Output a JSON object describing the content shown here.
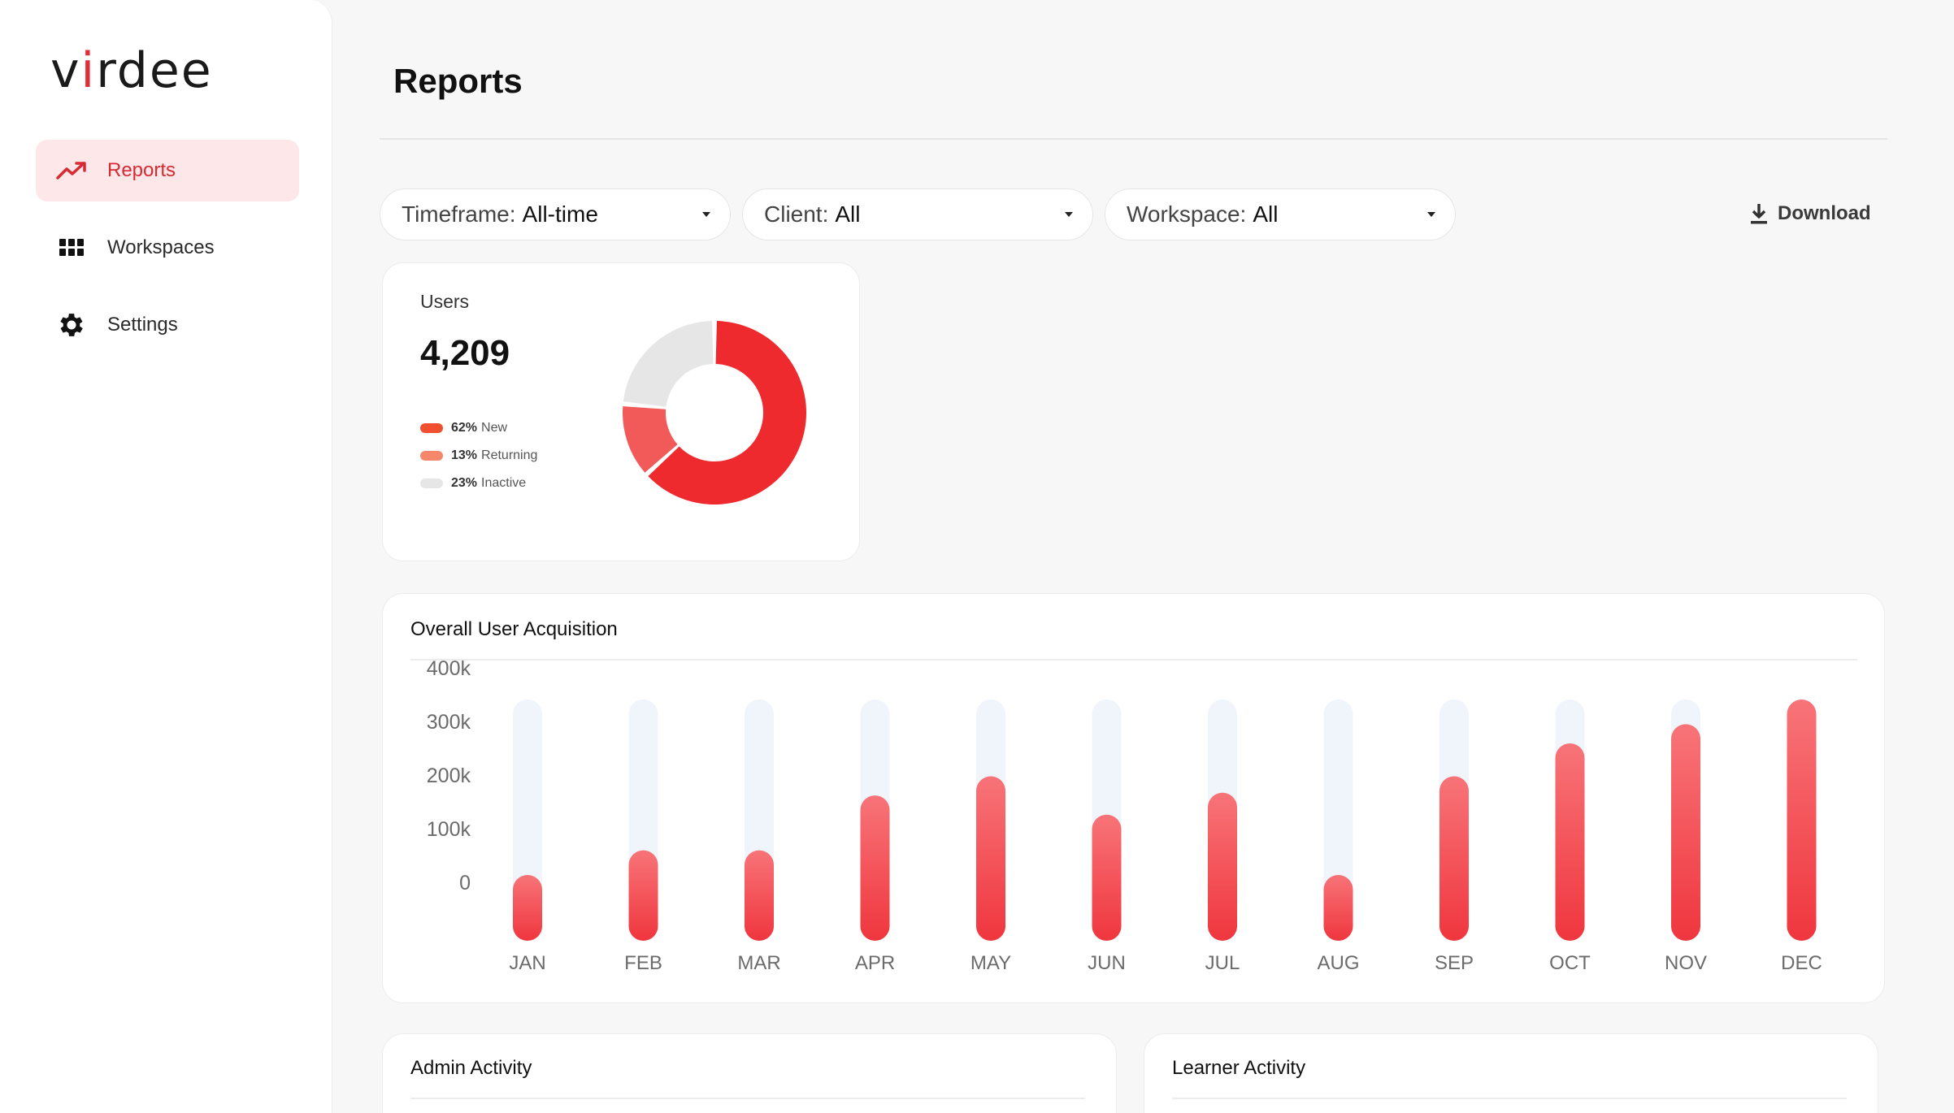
{
  "brand": {
    "name_prefix": "v",
    "name_dot": "i",
    "name_rest": "rdee",
    "accent": "#e32d36"
  },
  "sidebar": {
    "items": [
      {
        "label": "Reports",
        "icon": "trending-up-icon",
        "active": true
      },
      {
        "label": "Workspaces",
        "icon": "grid-icon",
        "active": false
      },
      {
        "label": "Settings",
        "icon": "gear-icon",
        "active": false
      }
    ]
  },
  "header": {
    "title": "Reports"
  },
  "filters": {
    "timeframe": {
      "label": "Timeframe:",
      "value": "All-time"
    },
    "client": {
      "label": "Client:",
      "value": "All"
    },
    "workspace": {
      "label": "Workspace:",
      "value": "All"
    },
    "download_label": "Download"
  },
  "users_card": {
    "title": "Users",
    "count": "4,209",
    "legend": [
      {
        "pct": "62%",
        "label": "New",
        "color": "#f0502f"
      },
      {
        "pct": "13%",
        "label": "Returning",
        "color": "#f5876a"
      },
      {
        "pct": "23%",
        "label": "Inactive",
        "color": "#e6e6e6"
      }
    ]
  },
  "acquisition": {
    "title": "Overall User Acquisition"
  },
  "chart_data": [
    {
      "type": "pie",
      "variant": "donut",
      "labels": [
        "New",
        "Returning",
        "Inactive"
      ],
      "values": [
        62,
        13,
        23
      ],
      "colors": [
        "#ee2a2f",
        "#f25a5a",
        "#e6e6e6"
      ]
    },
    {
      "type": "bar",
      "title": "Overall User Acquisition",
      "categories": [
        "JAN",
        "FEB",
        "MAR",
        "APR",
        "MAY",
        "JUN",
        "JUL",
        "AUG",
        "SEP",
        "OCT",
        "NOV",
        "DEC"
      ],
      "values": [
        120000,
        165000,
        165000,
        265000,
        300000,
        230000,
        270000,
        120000,
        300000,
        360000,
        395000,
        440000
      ],
      "max_track": 440000,
      "yticks": [
        "400k",
        "300k",
        "200k",
        "100k",
        "0"
      ],
      "ytick_values": [
        400000,
        300000,
        200000,
        100000,
        0
      ],
      "ylim": [
        0,
        440000
      ],
      "bar_color_top": "#f77478",
      "bar_color_bottom": "#f0363e",
      "track_color": "#f0f4fb",
      "grid": false
    }
  ],
  "admin_activity": {
    "title": "Admin Activity"
  },
  "learner_activity": {
    "title": "Learner Activity"
  }
}
